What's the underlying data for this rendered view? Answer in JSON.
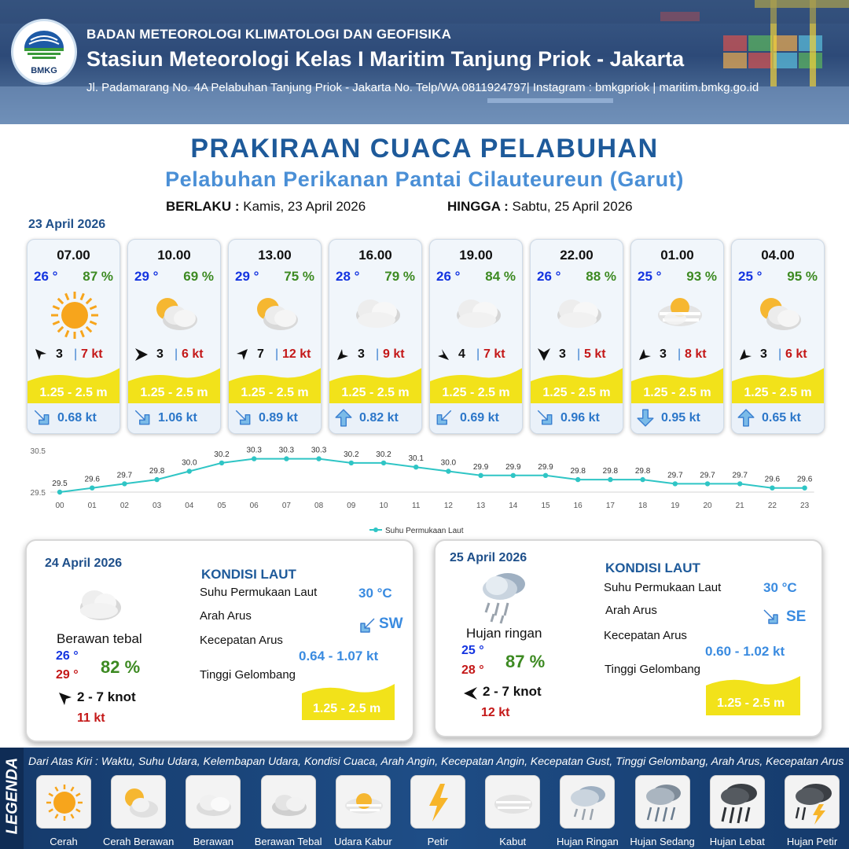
{
  "header": {
    "agency": "BADAN METEOROLOGI KLIMATOLOGI DAN GEOFISIKA",
    "station": "Stasiun Meteorologi Kelas I Maritim Tanjung Priok - Jakarta",
    "address": "Jl. Padamarang No. 4A Pelabuhan Tanjung Priok - Jakarta No. Telp/WA 0811924797| Instagram : bmkgpriok | maritim.bmkg.go.id",
    "logo_text": "BMKG"
  },
  "title": "PRAKIRAAN CUACA PELABUHAN",
  "subtitle": "Pelabuhan Perikanan Pantai Cilauteureun (Garut)",
  "validity": {
    "from_label": "BERLAKU :",
    "from_value": "Kamis, 23 April 2026",
    "to_label": "HINGGA :",
    "to_value": "Sabtu, 25 April 2026"
  },
  "day1_label": "23 April 2026",
  "hourly": [
    {
      "time": "07.00",
      "temp": "26 °",
      "hum": "87 %",
      "icon": "sun-icon",
      "wind_speed": "3",
      "gust": "7 kt",
      "wave": "1.25 - 2.5 m",
      "current": "0.68 kt"
    },
    {
      "time": "10.00",
      "temp": "29 °",
      "hum": "69 %",
      "icon": "partly-cloudy-icon",
      "wind_speed": "3",
      "gust": "6 kt",
      "wave": "1.25 - 2.5 m",
      "current": "1.06 kt"
    },
    {
      "time": "13.00",
      "temp": "29 °",
      "hum": "75 %",
      "icon": "partly-cloudy-icon",
      "wind_speed": "7",
      "gust": "12 kt",
      "wave": "1.25 - 2.5 m",
      "current": "0.89 kt"
    },
    {
      "time": "16.00",
      "temp": "28 °",
      "hum": "79 %",
      "icon": "overcast-icon",
      "wind_speed": "3",
      "gust": "9 kt",
      "wave": "1.25 - 2.5 m",
      "current": "0.82 kt"
    },
    {
      "time": "19.00",
      "temp": "26 °",
      "hum": "84 %",
      "icon": "overcast-icon",
      "wind_speed": "4",
      "gust": "7 kt",
      "wave": "1.25 - 2.5 m",
      "current": "0.69 kt"
    },
    {
      "time": "22.00",
      "temp": "26 °",
      "hum": "88 %",
      "icon": "overcast-icon",
      "wind_speed": "3",
      "gust": "5 kt",
      "wave": "1.25 - 2.5 m",
      "current": "0.96 kt"
    },
    {
      "time": "01.00",
      "temp": "25 °",
      "hum": "93 %",
      "icon": "haze-icon",
      "wind_speed": "3",
      "gust": "8 kt",
      "wave": "1.25 - 2.5 m",
      "current": "0.95 kt"
    },
    {
      "time": "04.00",
      "temp": "25 °",
      "hum": "95 %",
      "icon": "partly-cloudy-icon",
      "wind_speed": "3",
      "gust": "6 kt",
      "wave": "1.25 - 2.5 m",
      "current": "0.65 kt"
    }
  ],
  "chart_data": {
    "type": "line",
    "title": "",
    "xlabel": "",
    "ylabel": "",
    "x": [
      "00",
      "01",
      "02",
      "03",
      "04",
      "05",
      "06",
      "07",
      "08",
      "09",
      "10",
      "11",
      "12",
      "13",
      "14",
      "15",
      "16",
      "17",
      "18",
      "19",
      "20",
      "21",
      "22",
      "23"
    ],
    "series": [
      {
        "name": "Suhu Permukaan Laut",
        "values": [
          29.5,
          29.6,
          29.7,
          29.8,
          30.0,
          30.2,
          30.3,
          30.3,
          30.3,
          30.2,
          30.2,
          30.1,
          30.0,
          29.9,
          29.9,
          29.9,
          29.8,
          29.8,
          29.8,
          29.7,
          29.7,
          29.7,
          29.6,
          29.6
        ],
        "color": "#2fc5c5"
      }
    ],
    "ylim": [
      29.5,
      30.5
    ],
    "yticks": [
      "30.5",
      "29.5"
    ],
    "legend": "bottom"
  },
  "day2": {
    "date": "24 April 2026",
    "condition": "Berawan tebal",
    "temp_min": "26 °",
    "temp_max": "29 °",
    "hum": "82 %",
    "wind": "2  - 7 knot",
    "gust": "11 kt",
    "kondisi_title": "KONDISI LAUT",
    "sst_label": "Suhu Permukaan Laut",
    "sst_value": "30 °C",
    "arah_label": "Arah Arus",
    "arah_value": "SW",
    "kec_label": "Kecepatan Arus",
    "kec_value": "0.64  - 1.07 kt",
    "tinggi_label": "Tinggi Gelombang",
    "tinggi_value": "1.25 - 2.5 m"
  },
  "day3": {
    "date": "25 April 2026",
    "condition": "Hujan ringan",
    "temp_min": "25 °",
    "temp_max": "28 °",
    "hum": "87 %",
    "wind": "2  - 7 knot",
    "gust": "12 kt",
    "kondisi_title": "KONDISI LAUT",
    "sst_label": "Suhu Permukaan Laut",
    "sst_value": "30 °C",
    "arah_label": "Arah Arus",
    "arah_value": "SE",
    "kec_label": "Kecepatan Arus",
    "kec_value": "0.60  - 1.02 kt",
    "tinggi_label": "Tinggi Gelombang",
    "tinggi_value": "1.25 - 2.5 m"
  },
  "legend": {
    "title": "LEGENDA",
    "description": "Dari Atas Kiri : Waktu, Suhu Udara, Kelembapan Udara, Kondisi Cuaca, Arah Angin, Kecepatan Angin, Kecepatan Gust, Tinggi Gelombang, Arah Arus, Kecepatan Arus",
    "items": [
      "Cerah",
      "Cerah Berawan",
      "Berawan",
      "Berawan Tebal",
      "Udara Kabur",
      "Petir",
      "Kabut",
      "Hujan Ringan",
      "Hujan Sedang",
      "Hujan Lebat",
      "Hujan Petir"
    ]
  },
  "colors": {
    "title_blue": "#1e5a9a",
    "sub_blue": "#4a8fd6",
    "temp_blue": "#1434e0",
    "hum_green": "#3d8a22",
    "gust_red": "#c41818",
    "wave_yellow": "#f2e21a",
    "sst_line": "#2fc5c5"
  }
}
